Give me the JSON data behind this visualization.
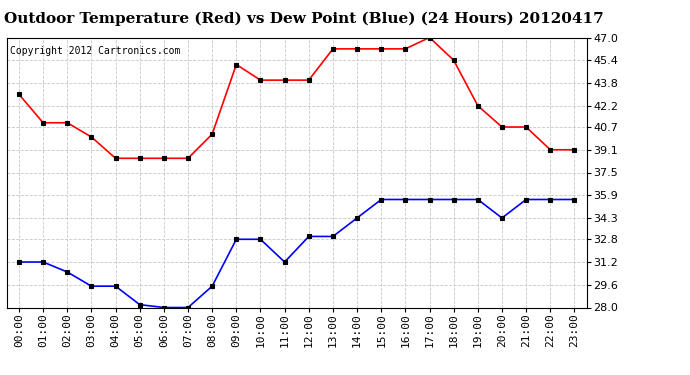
{
  "title": "Outdoor Temperature (Red) vs Dew Point (Blue) (24 Hours) 20120417",
  "copyright_text": "Copyright 2012 Cartronics.com",
  "x_labels": [
    "00:00",
    "01:00",
    "02:00",
    "03:00",
    "04:00",
    "05:00",
    "06:00",
    "07:00",
    "08:00",
    "09:00",
    "10:00",
    "11:00",
    "12:00",
    "13:00",
    "14:00",
    "15:00",
    "16:00",
    "17:00",
    "18:00",
    "19:00",
    "20:00",
    "21:00",
    "22:00",
    "23:00"
  ],
  "temp_red": [
    43.0,
    41.0,
    41.0,
    40.0,
    38.5,
    38.5,
    38.5,
    38.5,
    40.2,
    45.1,
    44.0,
    44.0,
    44.0,
    46.2,
    46.2,
    46.2,
    46.2,
    47.0,
    45.4,
    42.2,
    40.7,
    40.7,
    39.1,
    39.1
  ],
  "dew_blue": [
    31.2,
    31.2,
    30.5,
    29.5,
    29.5,
    28.2,
    28.0,
    28.0,
    29.5,
    32.8,
    32.8,
    31.2,
    33.0,
    33.0,
    34.3,
    35.6,
    35.6,
    35.6,
    35.6,
    35.6,
    34.3,
    35.6,
    35.6,
    35.6
  ],
  "ylim": [
    28.0,
    47.0
  ],
  "yticks": [
    28.0,
    29.6,
    31.2,
    32.8,
    34.3,
    35.9,
    37.5,
    39.1,
    40.7,
    42.2,
    43.8,
    45.4,
    47.0
  ],
  "line_color_red": "#ff0000",
  "line_color_blue": "#0000ff",
  "marker": "s",
  "marker_size": 3,
  "marker_color": "#000000",
  "background_color": "#ffffff",
  "grid_color": "#c8c8c8",
  "title_fontsize": 11,
  "copyright_fontsize": 7,
  "tick_fontsize": 8
}
